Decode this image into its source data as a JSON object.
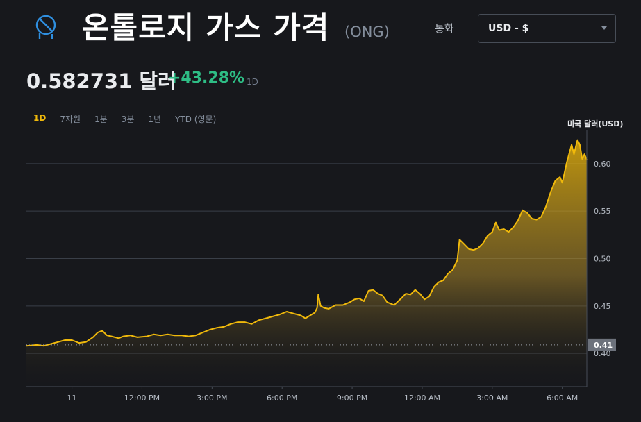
{
  "header": {
    "title": "온톨로지 가스 가격",
    "symbol": "(ONG)",
    "currency_label": "통화",
    "currency_value": "USD - $"
  },
  "price": {
    "value": "0.582731 달러",
    "change": "+43.28%",
    "period": "1D"
  },
  "tabs": [
    {
      "label": "1D",
      "active": true
    },
    {
      "label": "7자원",
      "active": false
    },
    {
      "label": "1분",
      "active": false
    },
    {
      "label": "3분",
      "active": false
    },
    {
      "label": "1년",
      "active": false
    },
    {
      "label": "YTD (영문)",
      "active": false
    }
  ],
  "colors": {
    "line": "#f0b90b",
    "positive": "#2ebd85",
    "logo": "#2f8fe0"
  },
  "icons": {
    "logo": "ontology-logo-icon",
    "dropdown": "chevron-down-icon"
  },
  "chart_data": {
    "type": "area",
    "ylabel": "미국 달러(USD)",
    "ylim": [
      0.365,
      0.635
    ],
    "yticks": [
      0.4,
      0.45,
      0.5,
      0.55,
      0.6
    ],
    "ytick_labels": [
      "0.40",
      "0.45",
      "0.50",
      "0.55",
      "0.60"
    ],
    "current_value_label": "0.41",
    "current_value": 0.409,
    "xlim": [
      -1.95,
      22.05
    ],
    "x_ticks": [
      {
        "t": 0,
        "label": "11"
      },
      {
        "t": 3,
        "label": "12:00 PM"
      },
      {
        "t": 6,
        "label": "3:00 PM"
      },
      {
        "t": 9,
        "label": "6:00 PM"
      },
      {
        "t": 12,
        "label": "9:00 PM"
      },
      {
        "t": 15,
        "label": "12:00 AM"
      },
      {
        "t": 18,
        "label": "3:00 AM"
      },
      {
        "t": 21,
        "label": "6:00 AM"
      }
    ],
    "points": [
      [
        -1.95,
        0.408
      ],
      [
        -1.5,
        0.409
      ],
      [
        -1.2,
        0.408
      ],
      [
        -0.9,
        0.41
      ],
      [
        -0.6,
        0.412
      ],
      [
        -0.3,
        0.414
      ],
      [
        0,
        0.414
      ],
      [
        0.3,
        0.411
      ],
      [
        0.6,
        0.412
      ],
      [
        0.9,
        0.417
      ],
      [
        1.1,
        0.422
      ],
      [
        1.3,
        0.424
      ],
      [
        1.5,
        0.419
      ],
      [
        1.7,
        0.418
      ],
      [
        2.0,
        0.416
      ],
      [
        2.2,
        0.418
      ],
      [
        2.5,
        0.419
      ],
      [
        2.8,
        0.417
      ],
      [
        3.2,
        0.418
      ],
      [
        3.5,
        0.42
      ],
      [
        3.8,
        0.419
      ],
      [
        4.1,
        0.42
      ],
      [
        4.4,
        0.419
      ],
      [
        4.7,
        0.419
      ],
      [
        5.0,
        0.418
      ],
      [
        5.3,
        0.419
      ],
      [
        5.6,
        0.422
      ],
      [
        5.9,
        0.425
      ],
      [
        6.2,
        0.427
      ],
      [
        6.5,
        0.428
      ],
      [
        6.8,
        0.431
      ],
      [
        7.1,
        0.433
      ],
      [
        7.4,
        0.433
      ],
      [
        7.7,
        0.431
      ],
      [
        8.0,
        0.435
      ],
      [
        8.3,
        0.437
      ],
      [
        8.6,
        0.439
      ],
      [
        8.9,
        0.441
      ],
      [
        9.2,
        0.444
      ],
      [
        9.5,
        0.442
      ],
      [
        9.8,
        0.44
      ],
      [
        10.0,
        0.437
      ],
      [
        10.2,
        0.44
      ],
      [
        10.4,
        0.443
      ],
      [
        10.5,
        0.448
      ],
      [
        10.55,
        0.462
      ],
      [
        10.65,
        0.45
      ],
      [
        10.8,
        0.448
      ],
      [
        11.0,
        0.447
      ],
      [
        11.3,
        0.451
      ],
      [
        11.6,
        0.451
      ],
      [
        11.9,
        0.454
      ],
      [
        12.1,
        0.457
      ],
      [
        12.3,
        0.458
      ],
      [
        12.5,
        0.455
      ],
      [
        12.7,
        0.466
      ],
      [
        12.9,
        0.467
      ],
      [
        13.1,
        0.463
      ],
      [
        13.3,
        0.461
      ],
      [
        13.5,
        0.454
      ],
      [
        13.8,
        0.451
      ],
      [
        14.1,
        0.458
      ],
      [
        14.3,
        0.463
      ],
      [
        14.5,
        0.462
      ],
      [
        14.7,
        0.467
      ],
      [
        14.9,
        0.463
      ],
      [
        15.1,
        0.457
      ],
      [
        15.3,
        0.46
      ],
      [
        15.5,
        0.47
      ],
      [
        15.7,
        0.475
      ],
      [
        15.9,
        0.477
      ],
      [
        16.1,
        0.484
      ],
      [
        16.3,
        0.488
      ],
      [
        16.5,
        0.498
      ],
      [
        16.6,
        0.52
      ],
      [
        16.8,
        0.515
      ],
      [
        17.0,
        0.51
      ],
      [
        17.2,
        0.509
      ],
      [
        17.4,
        0.511
      ],
      [
        17.6,
        0.516
      ],
      [
        17.8,
        0.524
      ],
      [
        18.0,
        0.528
      ],
      [
        18.15,
        0.538
      ],
      [
        18.3,
        0.53
      ],
      [
        18.5,
        0.531
      ],
      [
        18.7,
        0.528
      ],
      [
        18.9,
        0.533
      ],
      [
        19.1,
        0.54
      ],
      [
        19.3,
        0.551
      ],
      [
        19.5,
        0.548
      ],
      [
        19.7,
        0.542
      ],
      [
        19.9,
        0.541
      ],
      [
        20.1,
        0.544
      ],
      [
        20.3,
        0.555
      ],
      [
        20.5,
        0.57
      ],
      [
        20.7,
        0.582
      ],
      [
        20.9,
        0.586
      ],
      [
        21.0,
        0.58
      ],
      [
        21.2,
        0.602
      ],
      [
        21.4,
        0.62
      ],
      [
        21.5,
        0.61
      ],
      [
        21.65,
        0.625
      ],
      [
        21.75,
        0.62
      ],
      [
        21.85,
        0.605
      ],
      [
        21.95,
        0.61
      ],
      [
        22.05,
        0.604
      ]
    ]
  }
}
